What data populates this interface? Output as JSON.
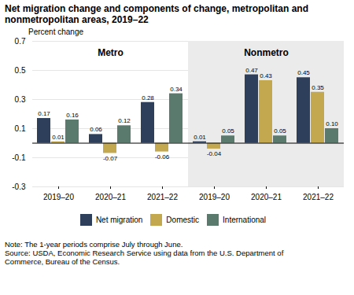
{
  "chart_data": {
    "type": "bar",
    "title": "Net migration change and components of change, metropolitan and\nnonmetropolitan areas, 2019–22",
    "ylabel": "Percent change",
    "categories": [
      "2019–20",
      "2020–21",
      "2021–22",
      "2019–20",
      "2020–21",
      "2021–22"
    ],
    "category_groups": [
      "Metro",
      "Metro",
      "Metro",
      "Nonmetro",
      "Nonmetro",
      "Nonmetro"
    ],
    "series": [
      {
        "name": "Net migration",
        "color": "#2e3f5c",
        "values": [
          0.17,
          0.06,
          0.28,
          0.01,
          0.47,
          0.45
        ],
        "value_labels": [
          "0.17",
          "0.06",
          "0.28",
          "0.01",
          "0.47",
          "0.45"
        ]
      },
      {
        "name": "Domestic",
        "color": "#c4a84f",
        "values": [
          0.01,
          -0.07,
          -0.06,
          -0.04,
          0.43,
          0.35
        ],
        "value_labels": [
          "0.01",
          "-0.07",
          "-0.06",
          "-0.04",
          "0.43",
          "0.35"
        ]
      },
      {
        "name": "International",
        "color": "#5a7a6e",
        "values": [
          0.16,
          0.12,
          0.34,
          0.05,
          0.05,
          0.1
        ],
        "value_labels": [
          "0.16",
          "0.12",
          "0.34",
          "0.05",
          "0.05",
          "0.10"
        ]
      }
    ],
    "ylim": [
      -0.3,
      0.7
    ],
    "yticks": [
      -0.3,
      -0.1,
      0.1,
      0.3,
      0.5,
      0.7
    ],
    "grid": true,
    "legend": "bottom",
    "data_labels": true,
    "caption": [
      "Note: The 1-year periods comprise July through June.",
      "Source: USDA, Economic Research Service using data from the U.S. Department of\nCommerce, Bureau of the Census."
    ]
  }
}
